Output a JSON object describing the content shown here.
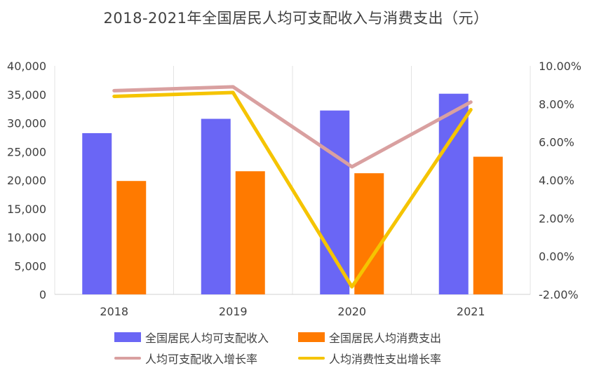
{
  "chart_data": {
    "type": "bar",
    "title": "2018-2021年全国居民人均可支配收入与消费支出（元）",
    "categories": [
      "2018",
      "2019",
      "2020",
      "2021"
    ],
    "series": [
      {
        "name": "全国居民人均可支配收入",
        "type": "bar",
        "axis": "left",
        "color": "#6A66F5",
        "values": [
          28228,
          30733,
          32189,
          35128
        ]
      },
      {
        "name": "全国居民人均消费支出",
        "type": "bar",
        "axis": "left",
        "color": "#FF7A00",
        "values": [
          19853,
          21559,
          21210,
          24100
        ]
      },
      {
        "name": "人均可支配收入增长率",
        "type": "line",
        "axis": "right",
        "color": "#D9A0A0",
        "values": [
          8.7,
          8.9,
          4.7,
          8.1
        ]
      },
      {
        "name": "人均消费性支出增长率",
        "type": "line",
        "axis": "right",
        "color": "#F5C400",
        "values": [
          8.4,
          8.6,
          -1.6,
          7.7
        ]
      }
    ],
    "left_axis": {
      "min": 0,
      "max": 40000,
      "step": 5000,
      "tick_labels": [
        "0",
        "5,000",
        "10,000",
        "15,000",
        "20,000",
        "25,000",
        "30,000",
        "35,000",
        "40,000"
      ]
    },
    "right_axis": {
      "min": -2,
      "max": 10,
      "step": 2,
      "tick_labels": [
        "-2.00%",
        "0.00%",
        "2.00%",
        "4.00%",
        "6.00%",
        "8.00%",
        "10.00%"
      ]
    },
    "grid": "vertical",
    "legend": "bottom"
  }
}
